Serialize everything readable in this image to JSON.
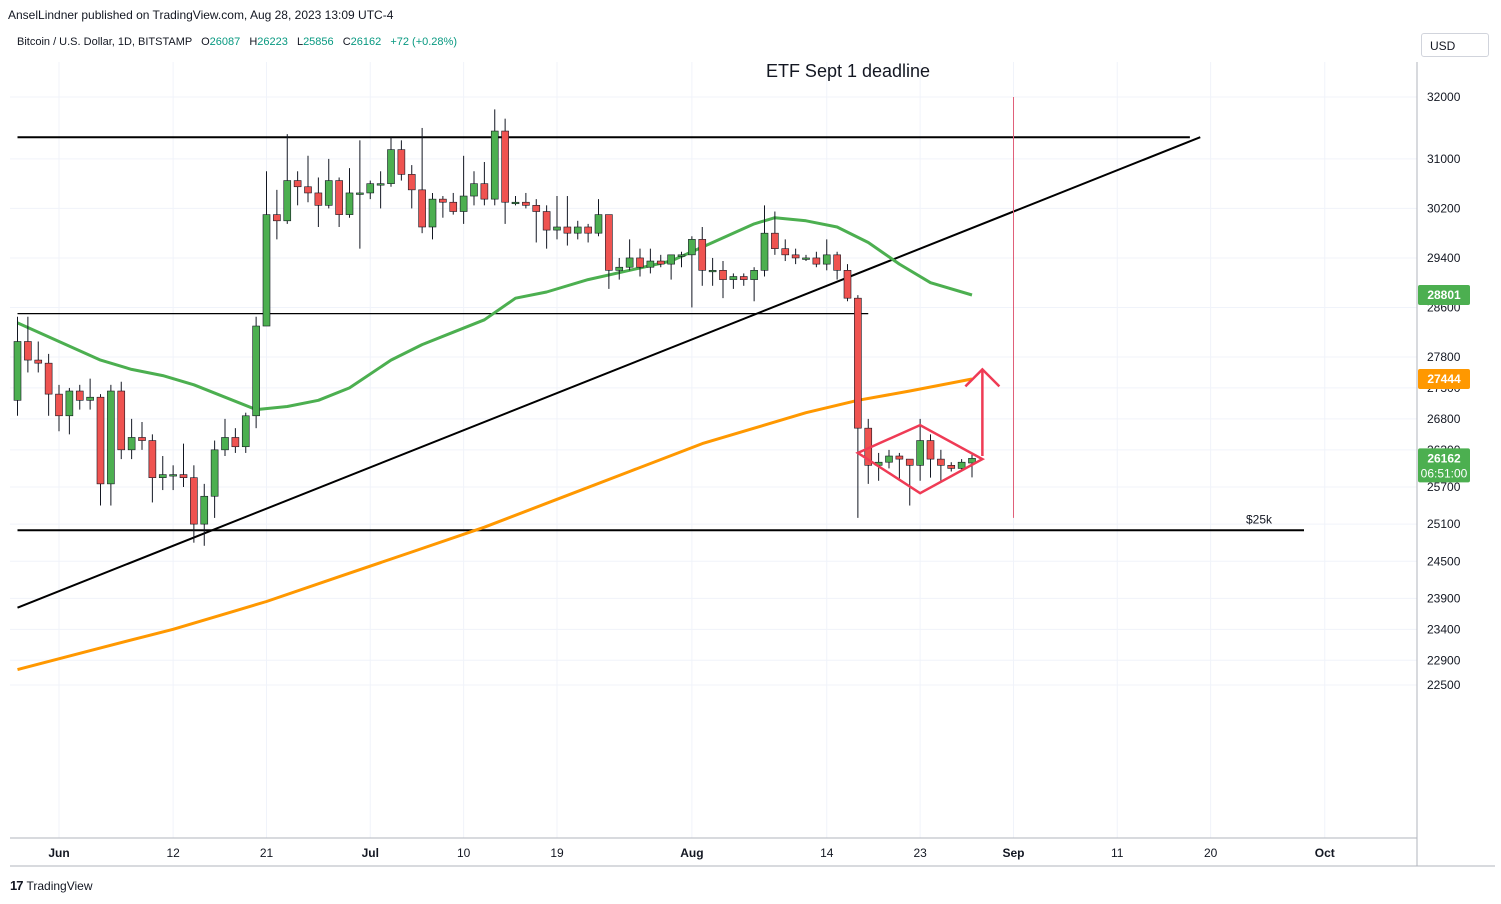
{
  "header": {
    "publisher_line": "AnselLindner published on TradingView.com, Aug 28, 2023 13:09 UTC-4",
    "symbol": "Bitcoin / U.S. Dollar, 1D, BITSTAMP",
    "o_label": "O",
    "o_value": "26087",
    "h_label": "H",
    "h_value": "26223",
    "l_label": "L",
    "l_value": "25856",
    "c_label": "C",
    "c_value": "26162",
    "change": "+72 (+0.28%)"
  },
  "currency": "USD",
  "footer": {
    "brand": "TradingView"
  },
  "chart_data": {
    "type": "candlestick",
    "title": "ETF Sept 1 deadline",
    "y_ticks": [
      32000,
      31000,
      30200,
      29400,
      28600,
      27800,
      27300,
      26800,
      26300,
      25700,
      25100,
      24500,
      23900,
      23400,
      22900,
      22500
    ],
    "x_ticks": [
      {
        "label": "Jun",
        "date": "2023-06-01"
      },
      {
        "label": "12",
        "date": "2023-06-12"
      },
      {
        "label": "21",
        "date": "2023-06-21"
      },
      {
        "label": "Jul",
        "date": "2023-07-01"
      },
      {
        "label": "10",
        "date": "2023-07-10"
      },
      {
        "label": "19",
        "date": "2023-07-19"
      },
      {
        "label": "Aug",
        "date": "2023-08-01"
      },
      {
        "label": "14",
        "date": "2023-08-14"
      },
      {
        "label": "23",
        "date": "2023-08-23"
      },
      {
        "label": "Sep",
        "date": "2023-09-01"
      },
      {
        "label": "11",
        "date": "2023-09-11"
      },
      {
        "label": "20",
        "date": "2023-09-20"
      },
      {
        "label": "Oct",
        "date": "2023-10-01"
      }
    ],
    "price_labels": [
      {
        "value": "28801",
        "price": 28801,
        "color": "#4caf50"
      },
      {
        "value": "27444",
        "price": 27444,
        "color": "#ff9800"
      },
      {
        "value": "26162",
        "price": 26162,
        "color": "#4caf50",
        "countdown": "06:51:00"
      }
    ],
    "annotations": [
      {
        "text": "$25k",
        "price": 25000
      }
    ],
    "colors": {
      "up": "#4caf50",
      "down": "#ef5350",
      "ma_short": "#4caf50",
      "ma_long": "#ff9800",
      "vline": "#e0607a",
      "pattern": "#ef3b55"
    },
    "candles": [
      {
        "d": "2023-05-28",
        "o": 27100,
        "h": 28450,
        "l": 26850,
        "c": 28050
      },
      {
        "d": "2023-05-29",
        "o": 28050,
        "h": 28450,
        "l": 27550,
        "c": 27750
      },
      {
        "d": "2023-05-30",
        "o": 27750,
        "h": 28050,
        "l": 27550,
        "c": 27700
      },
      {
        "d": "2023-05-31",
        "o": 27700,
        "h": 27850,
        "l": 26850,
        "c": 27200
      },
      {
        "d": "2023-06-01",
        "o": 27200,
        "h": 27350,
        "l": 26600,
        "c": 26850
      },
      {
        "d": "2023-06-02",
        "o": 26850,
        "h": 27300,
        "l": 26550,
        "c": 27250
      },
      {
        "d": "2023-06-03",
        "o": 27250,
        "h": 27350,
        "l": 26950,
        "c": 27100
      },
      {
        "d": "2023-06-04",
        "o": 27100,
        "h": 27450,
        "l": 26950,
        "c": 27150
      },
      {
        "d": "2023-06-05",
        "o": 27150,
        "h": 27200,
        "l": 25400,
        "c": 25750
      },
      {
        "d": "2023-06-06",
        "o": 25750,
        "h": 27350,
        "l": 25400,
        "c": 27250
      },
      {
        "d": "2023-06-07",
        "o": 27250,
        "h": 27400,
        "l": 26150,
        "c": 26300
      },
      {
        "d": "2023-06-08",
        "o": 26300,
        "h": 26800,
        "l": 26150,
        "c": 26500
      },
      {
        "d": "2023-06-09",
        "o": 26500,
        "h": 26750,
        "l": 26300,
        "c": 26450
      },
      {
        "d": "2023-06-10",
        "o": 26450,
        "h": 26550,
        "l": 25450,
        "c": 25850
      },
      {
        "d": "2023-06-11",
        "o": 25850,
        "h": 26200,
        "l": 25650,
        "c": 25900
      },
      {
        "d": "2023-06-12",
        "o": 25900,
        "h": 26050,
        "l": 25650,
        "c": 25900
      },
      {
        "d": "2023-06-13",
        "o": 25900,
        "h": 26400,
        "l": 25700,
        "c": 25850
      },
      {
        "d": "2023-06-14",
        "o": 25850,
        "h": 26050,
        "l": 24800,
        "c": 25100
      },
      {
        "d": "2023-06-15",
        "o": 25100,
        "h": 25750,
        "l": 24750,
        "c": 25550
      },
      {
        "d": "2023-06-16",
        "o": 25550,
        "h": 26450,
        "l": 25200,
        "c": 26300
      },
      {
        "d": "2023-06-17",
        "o": 26300,
        "h": 26800,
        "l": 26200,
        "c": 26500
      },
      {
        "d": "2023-06-18",
        "o": 26500,
        "h": 26650,
        "l": 26250,
        "c": 26350
      },
      {
        "d": "2023-06-19",
        "o": 26350,
        "h": 26900,
        "l": 26250,
        "c": 26850
      },
      {
        "d": "2023-06-20",
        "o": 26850,
        "h": 28450,
        "l": 26650,
        "c": 28300
      },
      {
        "d": "2023-06-21",
        "o": 28300,
        "h": 30800,
        "l": 28300,
        "c": 30100
      },
      {
        "d": "2023-06-22",
        "o": 30100,
        "h": 30500,
        "l": 29700,
        "c": 30000
      },
      {
        "d": "2023-06-23",
        "o": 30000,
        "h": 31400,
        "l": 29950,
        "c": 30650
      },
      {
        "d": "2023-06-24",
        "o": 30650,
        "h": 30800,
        "l": 30250,
        "c": 30550
      },
      {
        "d": "2023-06-25",
        "o": 30550,
        "h": 31050,
        "l": 30300,
        "c": 30450
      },
      {
        "d": "2023-06-26",
        "o": 30450,
        "h": 30700,
        "l": 29900,
        "c": 30250
      },
      {
        "d": "2023-06-27",
        "o": 30250,
        "h": 31000,
        "l": 30200,
        "c": 30650
      },
      {
        "d": "2023-06-28",
        "o": 30650,
        "h": 30700,
        "l": 29900,
        "c": 30100
      },
      {
        "d": "2023-06-29",
        "o": 30100,
        "h": 30850,
        "l": 30050,
        "c": 30450
      },
      {
        "d": "2023-06-30",
        "o": 30450,
        "h": 31300,
        "l": 29550,
        "c": 30450
      },
      {
        "d": "2023-07-01",
        "o": 30450,
        "h": 30650,
        "l": 30350,
        "c": 30600
      },
      {
        "d": "2023-07-02",
        "o": 30600,
        "h": 30800,
        "l": 30200,
        "c": 30600
      },
      {
        "d": "2023-07-03",
        "o": 30600,
        "h": 31350,
        "l": 30550,
        "c": 31150
      },
      {
        "d": "2023-07-04",
        "o": 31150,
        "h": 31300,
        "l": 30650,
        "c": 30750
      },
      {
        "d": "2023-07-05",
        "o": 30750,
        "h": 30900,
        "l": 30200,
        "c": 30500
      },
      {
        "d": "2023-07-06",
        "o": 30500,
        "h": 31500,
        "l": 29800,
        "c": 29900
      },
      {
        "d": "2023-07-07",
        "o": 29900,
        "h": 30450,
        "l": 29700,
        "c": 30350
      },
      {
        "d": "2023-07-08",
        "o": 30350,
        "h": 30400,
        "l": 30050,
        "c": 30300
      },
      {
        "d": "2023-07-09",
        "o": 30300,
        "h": 30450,
        "l": 30100,
        "c": 30150
      },
      {
        "d": "2023-07-10",
        "o": 30150,
        "h": 31050,
        "l": 29950,
        "c": 30400
      },
      {
        "d": "2023-07-11",
        "o": 30400,
        "h": 30800,
        "l": 30250,
        "c": 30600
      },
      {
        "d": "2023-07-12",
        "o": 30600,
        "h": 30950,
        "l": 30250,
        "c": 30350
      },
      {
        "d": "2023-07-13",
        "o": 30350,
        "h": 31800,
        "l": 30250,
        "c": 31450
      },
      {
        "d": "2023-07-14",
        "o": 31450,
        "h": 31650,
        "l": 29950,
        "c": 30300
      },
      {
        "d": "2023-07-15",
        "o": 30300,
        "h": 30400,
        "l": 30250,
        "c": 30300
      },
      {
        "d": "2023-07-16",
        "o": 30300,
        "h": 30450,
        "l": 30200,
        "c": 30250
      },
      {
        "d": "2023-07-17",
        "o": 30250,
        "h": 30350,
        "l": 29650,
        "c": 30150
      },
      {
        "d": "2023-07-18",
        "o": 30150,
        "h": 30250,
        "l": 29550,
        "c": 29850
      },
      {
        "d": "2023-07-19",
        "o": 29850,
        "h": 30400,
        "l": 29700,
        "c": 29900
      },
      {
        "d": "2023-07-20",
        "o": 29900,
        "h": 30400,
        "l": 29600,
        "c": 29800
      },
      {
        "d": "2023-07-21",
        "o": 29800,
        "h": 30000,
        "l": 29700,
        "c": 29900
      },
      {
        "d": "2023-07-22",
        "o": 29900,
        "h": 29950,
        "l": 29650,
        "c": 29800
      },
      {
        "d": "2023-07-23",
        "o": 29800,
        "h": 30350,
        "l": 29750,
        "c": 30100
      },
      {
        "d": "2023-07-24",
        "o": 30100,
        "h": 30100,
        "l": 28900,
        "c": 29200
      },
      {
        "d": "2023-07-25",
        "o": 29200,
        "h": 29400,
        "l": 29050,
        "c": 29250
      },
      {
        "d": "2023-07-26",
        "o": 29250,
        "h": 29700,
        "l": 29200,
        "c": 29400
      },
      {
        "d": "2023-07-27",
        "o": 29400,
        "h": 29550,
        "l": 29100,
        "c": 29250
      },
      {
        "d": "2023-07-28",
        "o": 29250,
        "h": 29550,
        "l": 29150,
        "c": 29350
      },
      {
        "d": "2023-07-29",
        "o": 29350,
        "h": 29450,
        "l": 29250,
        "c": 29300
      },
      {
        "d": "2023-07-30",
        "o": 29300,
        "h": 29450,
        "l": 29050,
        "c": 29450
      },
      {
        "d": "2023-07-31",
        "o": 29450,
        "h": 29500,
        "l": 29250,
        "c": 29450
      },
      {
        "d": "2023-08-01",
        "o": 29450,
        "h": 29750,
        "l": 28600,
        "c": 29700
      },
      {
        "d": "2023-08-02",
        "o": 29700,
        "h": 29900,
        "l": 28950,
        "c": 29200
      },
      {
        "d": "2023-08-03",
        "o": 29200,
        "h": 29400,
        "l": 28950,
        "c": 29200
      },
      {
        "d": "2023-08-04",
        "o": 29200,
        "h": 29350,
        "l": 28750,
        "c": 29050
      },
      {
        "d": "2023-08-05",
        "o": 29050,
        "h": 29150,
        "l": 28900,
        "c": 29100
      },
      {
        "d": "2023-08-06",
        "o": 29100,
        "h": 29150,
        "l": 28950,
        "c": 29050
      },
      {
        "d": "2023-08-07",
        "o": 29050,
        "h": 29250,
        "l": 28700,
        "c": 29200
      },
      {
        "d": "2023-08-08",
        "o": 29200,
        "h": 30250,
        "l": 29100,
        "c": 29800
      },
      {
        "d": "2023-08-09",
        "o": 29800,
        "h": 30150,
        "l": 29450,
        "c": 29550
      },
      {
        "d": "2023-08-10",
        "o": 29550,
        "h": 29700,
        "l": 29350,
        "c": 29450
      },
      {
        "d": "2023-08-11",
        "o": 29450,
        "h": 29550,
        "l": 29300,
        "c": 29400
      },
      {
        "d": "2023-08-12",
        "o": 29400,
        "h": 29450,
        "l": 29350,
        "c": 29400
      },
      {
        "d": "2023-08-13",
        "o": 29400,
        "h": 29500,
        "l": 29250,
        "c": 29300
      },
      {
        "d": "2023-08-14",
        "o": 29300,
        "h": 29700,
        "l": 29200,
        "c": 29450
      },
      {
        "d": "2023-08-15",
        "o": 29450,
        "h": 29500,
        "l": 29050,
        "c": 29200
      },
      {
        "d": "2023-08-16",
        "o": 29200,
        "h": 29300,
        "l": 28700,
        "c": 28750
      },
      {
        "d": "2023-08-17",
        "o": 28750,
        "h": 28800,
        "l": 25200,
        "c": 26650
      },
      {
        "d": "2023-08-18",
        "o": 26650,
        "h": 26800,
        "l": 25750,
        "c": 26050
      },
      {
        "d": "2023-08-19",
        "o": 26050,
        "h": 26250,
        "l": 25800,
        "c": 26100
      },
      {
        "d": "2023-08-20",
        "o": 26100,
        "h": 26300,
        "l": 26000,
        "c": 26200
      },
      {
        "d": "2023-08-21",
        "o": 26200,
        "h": 26250,
        "l": 25800,
        "c": 26150
      },
      {
        "d": "2023-08-22",
        "o": 26150,
        "h": 26150,
        "l": 25400,
        "c": 26050
      },
      {
        "d": "2023-08-23",
        "o": 26050,
        "h": 26800,
        "l": 25800,
        "c": 26450
      },
      {
        "d": "2023-08-24",
        "o": 26450,
        "h": 26550,
        "l": 25850,
        "c": 26150
      },
      {
        "d": "2023-08-25",
        "o": 26150,
        "h": 26300,
        "l": 25800,
        "c": 26050
      },
      {
        "d": "2023-08-26",
        "o": 26050,
        "h": 26100,
        "l": 25950,
        "c": 26000
      },
      {
        "d": "2023-08-27",
        "o": 26000,
        "h": 26150,
        "l": 25950,
        "c": 26100
      },
      {
        "d": "2023-08-28",
        "o": 26087,
        "h": 26223,
        "l": 25856,
        "c": 26162
      }
    ],
    "ma_short": [
      {
        "d": "2023-05-28",
        "v": 28350
      },
      {
        "d": "2023-06-01",
        "v": 28050
      },
      {
        "d": "2023-06-05",
        "v": 27750
      },
      {
        "d": "2023-06-08",
        "v": 27600
      },
      {
        "d": "2023-06-11",
        "v": 27500
      },
      {
        "d": "2023-06-14",
        "v": 27350
      },
      {
        "d": "2023-06-17",
        "v": 27150
      },
      {
        "d": "2023-06-20",
        "v": 26950
      },
      {
        "d": "2023-06-23",
        "v": 27000
      },
      {
        "d": "2023-06-26",
        "v": 27100
      },
      {
        "d": "2023-06-29",
        "v": 27300
      },
      {
        "d": "2023-07-03",
        "v": 27750
      },
      {
        "d": "2023-07-06",
        "v": 28000
      },
      {
        "d": "2023-07-09",
        "v": 28200
      },
      {
        "d": "2023-07-12",
        "v": 28400
      },
      {
        "d": "2023-07-15",
        "v": 28750
      },
      {
        "d": "2023-07-18",
        "v": 28850
      },
      {
        "d": "2023-07-22",
        "v": 29050
      },
      {
        "d": "2023-07-26",
        "v": 29200
      },
      {
        "d": "2023-07-30",
        "v": 29350
      },
      {
        "d": "2023-08-03",
        "v": 29650
      },
      {
        "d": "2023-08-07",
        "v": 29950
      },
      {
        "d": "2023-08-09",
        "v": 30050
      },
      {
        "d": "2023-08-12",
        "v": 30000
      },
      {
        "d": "2023-08-15",
        "v": 29900
      },
      {
        "d": "2023-08-18",
        "v": 29650
      },
      {
        "d": "2023-08-21",
        "v": 29300
      },
      {
        "d": "2023-08-24",
        "v": 29000
      },
      {
        "d": "2023-08-28",
        "v": 28801
      }
    ],
    "ma_long": [
      {
        "d": "2023-05-28",
        "v": 22750
      },
      {
        "d": "2023-06-05",
        "v": 23100
      },
      {
        "d": "2023-06-12",
        "v": 23400
      },
      {
        "d": "2023-06-18",
        "v": 23700
      },
      {
        "d": "2023-06-21",
        "v": 23850
      },
      {
        "d": "2023-06-28",
        "v": 24250
      },
      {
        "d": "2023-07-05",
        "v": 24650
      },
      {
        "d": "2023-07-12",
        "v": 25050
      },
      {
        "d": "2023-07-19",
        "v": 25500
      },
      {
        "d": "2023-07-26",
        "v": 25950
      },
      {
        "d": "2023-08-02",
        "v": 26400
      },
      {
        "d": "2023-08-07",
        "v": 26650
      },
      {
        "d": "2023-08-12",
        "v": 26900
      },
      {
        "d": "2023-08-17",
        "v": 27100
      },
      {
        "d": "2023-08-22",
        "v": 27250
      },
      {
        "d": "2023-08-28",
        "v": 27444
      }
    ],
    "lines": [
      {
        "name": "resistance-line",
        "from": {
          "d": "2023-05-28",
          "p": 31350
        },
        "to": {
          "d": "2023-09-18",
          "p": 31350
        },
        "color": "#000000",
        "width": 2
      },
      {
        "name": "mid-level-line",
        "from": {
          "d": "2023-05-28",
          "p": 28500
        },
        "to": {
          "d": "2023-08-18",
          "p": 28500
        },
        "color": "#000000",
        "width": 1.2
      },
      {
        "name": "support-line",
        "from": {
          "d": "2023-05-28",
          "p": 25000
        },
        "to": {
          "d": "2023-09-29",
          "p": 25000
        },
        "color": "#000000",
        "width": 2
      },
      {
        "name": "rising-trend-line",
        "from": {
          "d": "2023-05-28",
          "p": 23750
        },
        "to": {
          "d": "2023-09-19",
          "p": 31350
        },
        "color": "#000000",
        "width": 2
      }
    ],
    "vline": {
      "d": "2023-09-01",
      "from": 32000,
      "to": 25200
    },
    "pattern": {
      "diamond": [
        {
          "d": "2023-08-17",
          "p": 26250
        },
        {
          "d": "2023-08-23",
          "p": 26700
        },
        {
          "d": "2023-08-29",
          "p": 26150
        },
        {
          "d": "2023-08-23",
          "p": 25600
        }
      ],
      "arrow": {
        "d": "2023-08-29",
        "from": 26200,
        "to": 27600
      }
    }
  }
}
